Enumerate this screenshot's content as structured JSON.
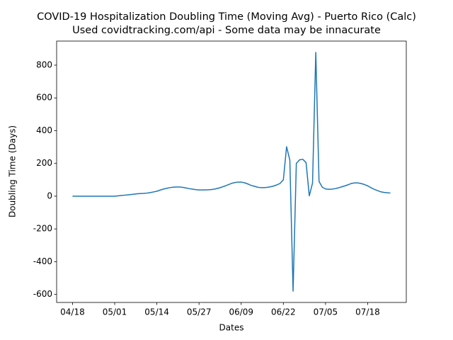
{
  "chart_data": {
    "type": "line",
    "title": "COVID-19 Hospitalization Doubling Time (Moving Avg) - Puerto Rico (Calc)",
    "subtitle": "Used covidtracking.com/api - Some data may be innacurate",
    "x_label": "Dates",
    "y_label": "Doubling Time (Days)",
    "color": "#1f77b4",
    "x": [
      "04/18",
      "04/19",
      "04/20",
      "04/21",
      "04/22",
      "04/23",
      "04/24",
      "04/25",
      "04/26",
      "04/27",
      "04/28",
      "04/29",
      "04/30",
      "05/01",
      "05/02",
      "05/03",
      "05/04",
      "05/05",
      "05/06",
      "05/07",
      "05/08",
      "05/09",
      "05/10",
      "05/11",
      "05/12",
      "05/13",
      "05/14",
      "05/15",
      "05/16",
      "05/17",
      "05/18",
      "05/19",
      "05/20",
      "05/21",
      "05/22",
      "05/23",
      "05/24",
      "05/25",
      "05/26",
      "05/27",
      "05/28",
      "05/29",
      "05/30",
      "05/31",
      "06/01",
      "06/02",
      "06/03",
      "06/04",
      "06/05",
      "06/06",
      "06/07",
      "06/08",
      "06/09",
      "06/10",
      "06/11",
      "06/12",
      "06/13",
      "06/14",
      "06/15",
      "06/16",
      "06/17",
      "06/18",
      "06/19",
      "06/20",
      "06/21",
      "06/22",
      "06/23",
      "06/24",
      "06/25",
      "06/26",
      "06/27",
      "06/28",
      "06/29",
      "06/30",
      "07/01",
      "07/02",
      "07/03",
      "07/04",
      "07/05",
      "07/06",
      "07/07",
      "07/08",
      "07/09",
      "07/10",
      "07/11",
      "07/12",
      "07/13",
      "07/14",
      "07/15",
      "07/16",
      "07/17",
      "07/18",
      "07/19",
      "07/20",
      "07/21",
      "07/22",
      "07/23",
      "07/24",
      "07/25"
    ],
    "values": [
      0,
      0,
      0,
      0,
      0,
      0,
      0,
      0,
      0,
      0,
      0,
      0,
      0,
      0,
      2,
      4,
      6,
      8,
      10,
      12,
      15,
      16,
      17,
      19,
      22,
      26,
      30,
      37,
      43,
      48,
      52,
      55,
      56,
      56,
      54,
      50,
      46,
      43,
      40,
      38,
      38,
      38,
      39,
      41,
      44,
      49,
      55,
      62,
      70,
      78,
      83,
      86,
      86,
      82,
      75,
      66,
      61,
      55,
      52,
      52,
      54,
      57,
      62,
      69,
      78,
      100,
      302,
      220,
      -580,
      200,
      222,
      225,
      205,
      2,
      80,
      878,
      90,
      55,
      44,
      42,
      43,
      46,
      51,
      57,
      63,
      70,
      78,
      81,
      81,
      77,
      71,
      63,
      52,
      42,
      34,
      27,
      23,
      21,
      19
    ],
    "xticks": [
      "04/18",
      "05/01",
      "05/14",
      "05/27",
      "06/09",
      "06/22",
      "07/05",
      "07/18"
    ],
    "ylim": [
      -649,
      947
    ],
    "yticks": [
      -600,
      -400,
      -200,
      0,
      200,
      400,
      600,
      800
    ]
  }
}
